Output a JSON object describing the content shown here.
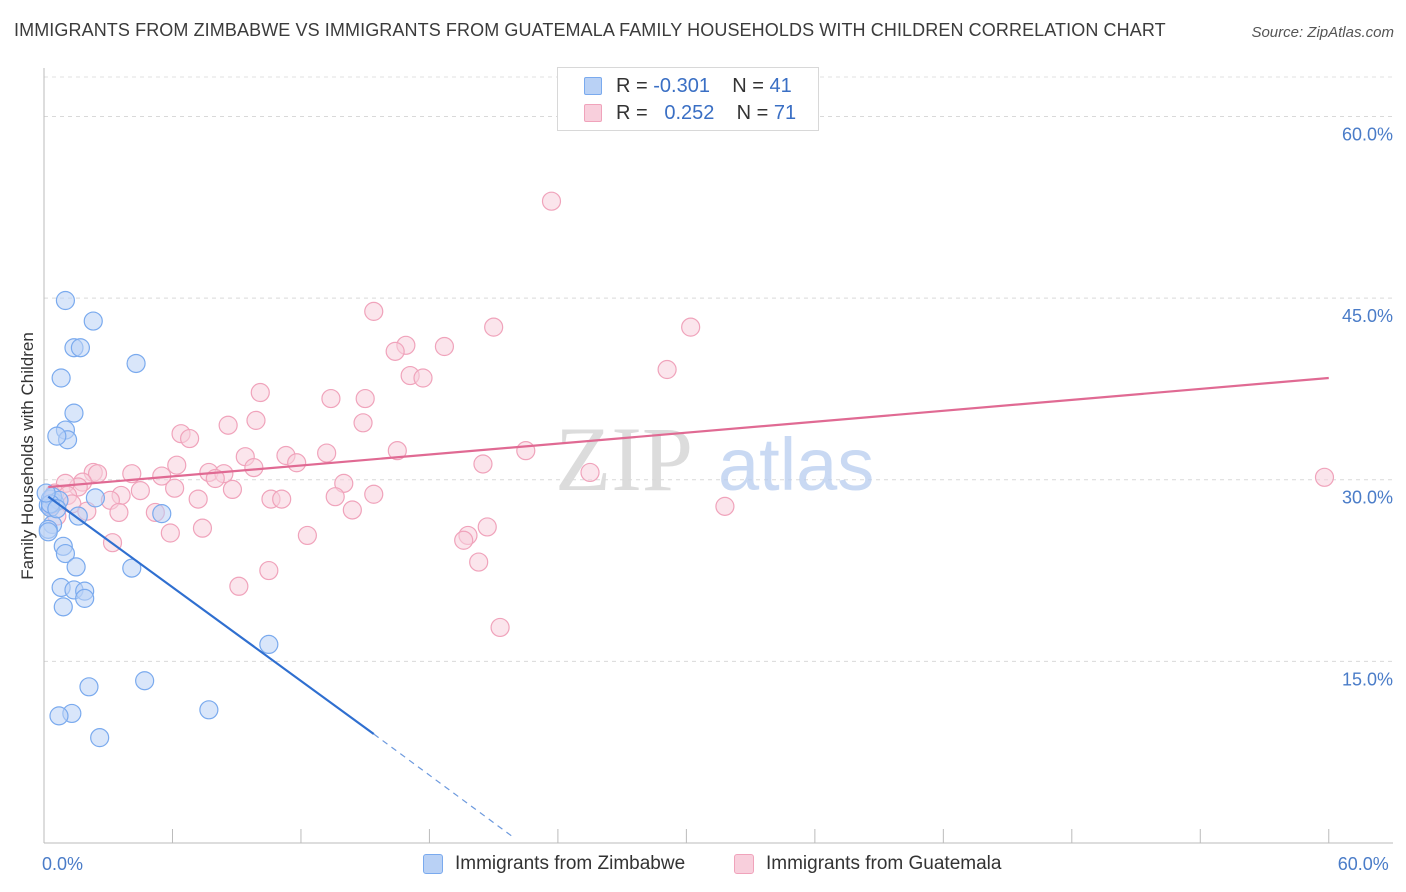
{
  "title": "IMMIGRANTS FROM ZIMBABWE VS IMMIGRANTS FROM GUATEMALA FAMILY HOUSEHOLDS WITH CHILDREN CORRELATION CHART",
  "source": "Source: ZipAtlas.com",
  "watermark": {
    "zip": "ZIP",
    "atlas": "atlas"
  },
  "legend_stats": [
    {
      "r_label": "R =",
      "r_value": "-0.301",
      "n_label": "N =",
      "n_value": "41"
    },
    {
      "r_label": "R =",
      "r_value": "0.252",
      "n_label": "N =",
      "n_value": "71"
    }
  ],
  "chart_data": {
    "type": "scatter",
    "title": "IMMIGRANTS FROM ZIMBABWE VS IMMIGRANTS FROM GUATEMALA FAMILY HOUSEHOLDS WITH CHILDREN CORRELATION CHART",
    "xlabel": "",
    "ylabel": "Family Households with Children",
    "xlim": [
      0,
      63
    ],
    "ylim": [
      0,
      64
    ],
    "x_tick_labels": [
      {
        "value": 0,
        "label": "0.0%"
      },
      {
        "value": 60,
        "label": "60.0%"
      }
    ],
    "x_minor_ticks": [
      0,
      6,
      12,
      18,
      24,
      30,
      36,
      42,
      48,
      54,
      60
    ],
    "y_ticks": [
      {
        "value": 15,
        "label": "15.0%"
      },
      {
        "value": 30,
        "label": "30.0%"
      },
      {
        "value": 45,
        "label": "45.0%"
      },
      {
        "value": 60,
        "label": "60.0%"
      }
    ],
    "grid": true,
    "legend_position": "bottom",
    "series": [
      {
        "name": "Immigrants from Zimbabwe",
        "color": "#7aaaee",
        "fill": "#b9d1f5",
        "line_color": "#2f6fd0",
        "r": -0.301,
        "n": 41,
        "trend": {
          "x0": 0.2,
          "y0": 28.6,
          "x1": 15.4,
          "y1": 9.0,
          "dash_x1": 21.9,
          "dash_y1": 0.5
        },
        "points": [
          [
            1.0,
            44.8
          ],
          [
            2.3,
            43.1
          ],
          [
            1.4,
            40.9
          ],
          [
            1.7,
            40.9
          ],
          [
            4.3,
            39.6
          ],
          [
            0.8,
            38.4
          ],
          [
            1.4,
            35.5
          ],
          [
            1.0,
            34.1
          ],
          [
            1.1,
            33.3
          ],
          [
            0.6,
            33.6
          ],
          [
            0.3,
            28.4
          ],
          [
            0.5,
            28.1
          ],
          [
            0.2,
            27.9
          ],
          [
            0.4,
            28.6
          ],
          [
            0.7,
            28.3
          ],
          [
            0.3,
            27.7
          ],
          [
            2.4,
            28.5
          ],
          [
            1.6,
            27.0
          ],
          [
            5.5,
            27.2
          ],
          [
            0.4,
            26.3
          ],
          [
            0.2,
            25.9
          ],
          [
            0.9,
            24.5
          ],
          [
            1.0,
            23.9
          ],
          [
            1.5,
            22.8
          ],
          [
            4.1,
            22.7
          ],
          [
            0.8,
            21.1
          ],
          [
            1.4,
            20.9
          ],
          [
            1.9,
            20.8
          ],
          [
            1.9,
            20.2
          ],
          [
            0.9,
            19.5
          ],
          [
            10.5,
            16.4
          ],
          [
            4.7,
            13.4
          ],
          [
            2.1,
            12.9
          ],
          [
            7.7,
            11.0
          ],
          [
            1.3,
            10.7
          ],
          [
            0.7,
            10.5
          ],
          [
            2.6,
            8.7
          ],
          [
            0.3,
            28.0
          ],
          [
            0.6,
            27.6
          ],
          [
            0.1,
            28.9
          ],
          [
            0.2,
            25.7
          ]
        ]
      },
      {
        "name": "Immigrants from Guatemala",
        "color": "#f0a3bb",
        "fill": "#f8cfdc",
        "line_color": "#e06a93",
        "r": 0.252,
        "n": 71,
        "trend": {
          "x0": 0.2,
          "y0": 29.4,
          "x1": 60.0,
          "y1": 38.4
        },
        "points": [
          [
            23.7,
            53.0
          ],
          [
            15.4,
            43.9
          ],
          [
            21.0,
            42.6
          ],
          [
            30.2,
            42.6
          ],
          [
            16.9,
            41.1
          ],
          [
            16.4,
            40.6
          ],
          [
            18.7,
            41.0
          ],
          [
            29.1,
            39.1
          ],
          [
            17.1,
            38.6
          ],
          [
            17.7,
            38.4
          ],
          [
            10.1,
            37.2
          ],
          [
            13.4,
            36.7
          ],
          [
            15.0,
            36.7
          ],
          [
            8.6,
            34.5
          ],
          [
            9.9,
            34.9
          ],
          [
            14.9,
            34.7
          ],
          [
            6.4,
            33.8
          ],
          [
            6.8,
            33.4
          ],
          [
            16.5,
            32.4
          ],
          [
            13.2,
            32.2
          ],
          [
            22.5,
            32.4
          ],
          [
            11.3,
            32.0
          ],
          [
            9.4,
            31.9
          ],
          [
            6.2,
            31.2
          ],
          [
            11.8,
            31.4
          ],
          [
            20.5,
            31.3
          ],
          [
            9.8,
            31.0
          ],
          [
            2.3,
            30.6
          ],
          [
            2.5,
            30.5
          ],
          [
            4.1,
            30.5
          ],
          [
            7.7,
            30.6
          ],
          [
            8.4,
            30.5
          ],
          [
            5.5,
            30.3
          ],
          [
            25.5,
            30.6
          ],
          [
            8.0,
            30.1
          ],
          [
            1.8,
            29.8
          ],
          [
            1.6,
            29.4
          ],
          [
            1.0,
            29.7
          ],
          [
            14.0,
            29.7
          ],
          [
            4.5,
            29.1
          ],
          [
            6.1,
            29.3
          ],
          [
            8.8,
            29.2
          ],
          [
            15.4,
            28.8
          ],
          [
            0.5,
            28.9
          ],
          [
            1.1,
            28.7
          ],
          [
            3.6,
            28.7
          ],
          [
            13.6,
            28.6
          ],
          [
            7.2,
            28.4
          ],
          [
            10.6,
            28.4
          ],
          [
            11.1,
            28.4
          ],
          [
            3.1,
            28.3
          ],
          [
            1.3,
            28.0
          ],
          [
            2.0,
            27.4
          ],
          [
            5.2,
            27.3
          ],
          [
            0.6,
            27.0
          ],
          [
            14.4,
            27.5
          ],
          [
            3.5,
            27.3
          ],
          [
            31.8,
            27.8
          ],
          [
            20.7,
            26.1
          ],
          [
            7.4,
            26.0
          ],
          [
            5.9,
            25.6
          ],
          [
            12.3,
            25.4
          ],
          [
            19.8,
            25.4
          ],
          [
            19.6,
            25.0
          ],
          [
            3.2,
            24.8
          ],
          [
            20.3,
            23.2
          ],
          [
            10.5,
            22.5
          ],
          [
            9.1,
            21.2
          ],
          [
            21.3,
            17.8
          ],
          [
            59.8,
            30.2
          ],
          [
            0.3,
            27.9
          ]
        ]
      }
    ]
  }
}
